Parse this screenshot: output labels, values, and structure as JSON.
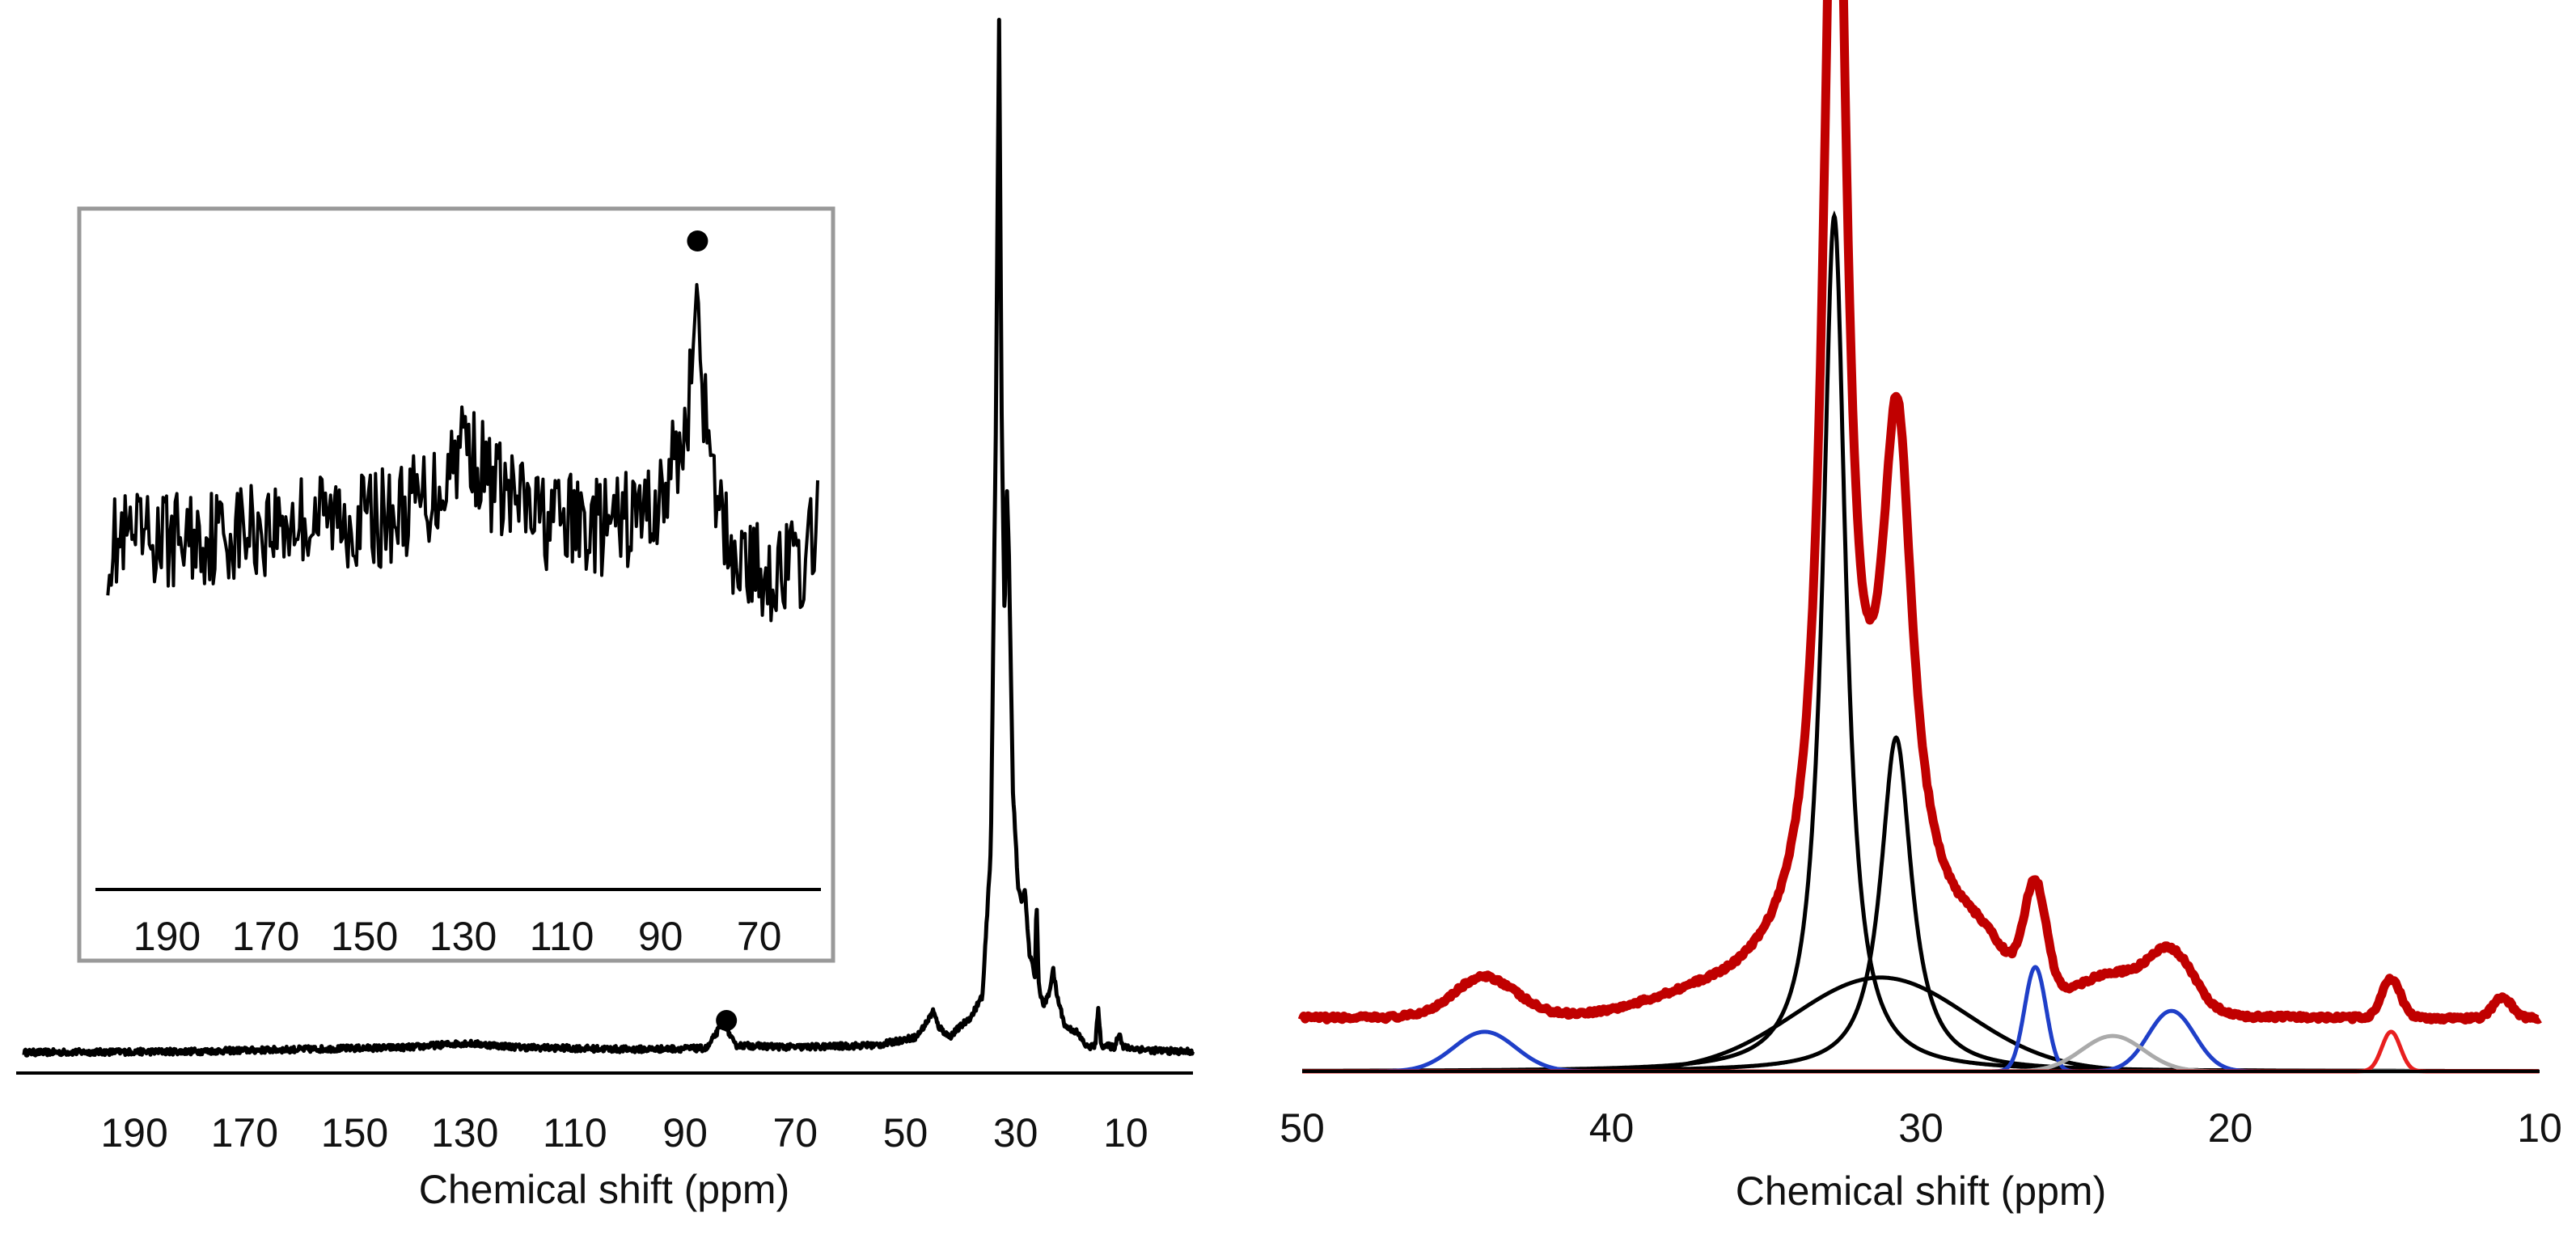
{
  "chart_data": [
    {
      "id": "left",
      "type": "line",
      "title": "",
      "xlabel": "Chemical shift (ppm)",
      "ylabel": "",
      "x_reversed": true,
      "xlim": [
        210,
        -10
      ],
      "grid": false,
      "xticks": [
        190,
        170,
        150,
        130,
        110,
        90,
        70,
        50,
        30,
        10
      ],
      "series": [
        {
          "color": "#000000",
          "points": [
            [
              210,
              0.005
            ],
            [
              180,
              0.006
            ],
            [
              160,
              0.008
            ],
            [
              140,
              0.01
            ],
            [
              130,
              0.014
            ],
            [
              120,
              0.01
            ],
            [
              100,
              0.008
            ],
            [
              86,
              0.009
            ],
            [
              83,
              0.035
            ],
            [
              81,
              0.012
            ],
            [
              70,
              0.01
            ],
            [
              55,
              0.012
            ],
            [
              48,
              0.02
            ],
            [
              46,
              0.035
            ],
            [
              45,
              0.045
            ],
            [
              44,
              0.03
            ],
            [
              42,
              0.02
            ],
            [
              40,
              0.03
            ],
            [
              38,
              0.04
            ],
            [
              36,
              0.06
            ],
            [
              34.5,
              0.2
            ],
            [
              33.6,
              0.6
            ],
            [
              33.0,
              1.0
            ],
            [
              32.5,
              0.6
            ],
            [
              32.0,
              0.42
            ],
            [
              31.6,
              0.55
            ],
            [
              31.2,
              0.48
            ],
            [
              30.5,
              0.26
            ],
            [
              29.5,
              0.16
            ],
            [
              28.8,
              0.15
            ],
            [
              28.3,
              0.16
            ],
            [
              27.5,
              0.1
            ],
            [
              26.5,
              0.08
            ],
            [
              26.2,
              0.15
            ],
            [
              25.8,
              0.07
            ],
            [
              25,
              0.05
            ],
            [
              24,
              0.06
            ],
            [
              23.2,
              0.085
            ],
            [
              22.5,
              0.06
            ],
            [
              21,
              0.03
            ],
            [
              19,
              0.025
            ],
            [
              17,
              0.01
            ],
            [
              15.5,
              0.012
            ],
            [
              15,
              0.05
            ],
            [
              14.5,
              0.012
            ],
            [
              12,
              0.01
            ],
            [
              11.2,
              0.025
            ],
            [
              10.5,
              0.01
            ],
            [
              5,
              0.007
            ],
            [
              0,
              0.006
            ],
            [
              -10,
              0.005
            ]
          ]
        }
      ],
      "markers": [
        {
          "x": 82.5
        }
      ],
      "inset": {
        "xlim": [
          205,
          57
        ],
        "xticks": [
          190,
          170,
          150,
          130,
          110,
          90,
          70
        ],
        "series": {
          "color": "#000000",
          "noise_level": 0.09,
          "points": [
            [
              202,
              0.5
            ],
            [
              180,
              0.52
            ],
            [
              160,
              0.55
            ],
            [
              145,
              0.55
            ],
            [
              135,
              0.6
            ],
            [
              130,
              0.7
            ],
            [
              125,
              0.62
            ],
            [
              115,
              0.55
            ],
            [
              100,
              0.53
            ],
            [
              90,
              0.58
            ],
            [
              85,
              0.7
            ],
            [
              83,
              0.9
            ],
            [
              82.5,
              1.0
            ],
            [
              82,
              0.85
            ],
            [
              80,
              0.62
            ],
            [
              76,
              0.5
            ],
            [
              70,
              0.45
            ],
            [
              60,
              0.47
            ],
            [
              58,
              0.6
            ]
          ]
        },
        "markers": [
          {
            "x": 82.5
          }
        ]
      }
    },
    {
      "id": "right",
      "type": "line",
      "title": "",
      "xlabel": "Chemical shift (ppm)",
      "ylabel": "",
      "x_reversed": true,
      "xlim": [
        50,
        10
      ],
      "grid": false,
      "xticks": [
        50,
        40,
        30,
        20,
        10
      ],
      "components": [
        {
          "type": "lorentz",
          "center": 32.8,
          "width": 0.45,
          "height": 0.82,
          "color": "#000000"
        },
        {
          "type": "lorentz",
          "center": 30.8,
          "width": 0.6,
          "height": 0.32,
          "color": "#000000"
        },
        {
          "type": "gauss",
          "center": 31.3,
          "width": 2.8,
          "height": 0.09,
          "color": "#000000"
        },
        {
          "type": "gauss",
          "center": 44.1,
          "width": 1.0,
          "height": 0.038,
          "color": "#1f3fc8"
        },
        {
          "type": "gauss",
          "center": 26.3,
          "width": 0.35,
          "height": 0.1,
          "color": "#1f3fc8"
        },
        {
          "type": "gauss",
          "center": 21.9,
          "width": 0.75,
          "height": 0.058,
          "color": "#1f3fc8"
        },
        {
          "type": "gauss",
          "center": 23.8,
          "width": 1.0,
          "height": 0.034,
          "color": "#aaaaaa"
        },
        {
          "type": "gauss",
          "center": 14.8,
          "width": 0.3,
          "height": 0.038,
          "color": "#e81f1f"
        }
      ],
      "envelope": {
        "color": "#c00000",
        "offset": 0.05,
        "extra": [
          {
            "type": "lorentz",
            "center": 32.7,
            "width": 0.4,
            "height": 0.35
          },
          {
            "type": "lorentz",
            "center": 30.7,
            "width": 0.55,
            "height": 0.14
          },
          {
            "type": "gauss",
            "center": 37.5,
            "width": 1.5,
            "height": 0.012
          },
          {
            "type": "gauss",
            "center": 28.0,
            "width": 0.7,
            "height": 0.02
          },
          {
            "type": "gauss",
            "center": 11.2,
            "width": 0.3,
            "height": 0.02
          }
        ]
      }
    }
  ]
}
